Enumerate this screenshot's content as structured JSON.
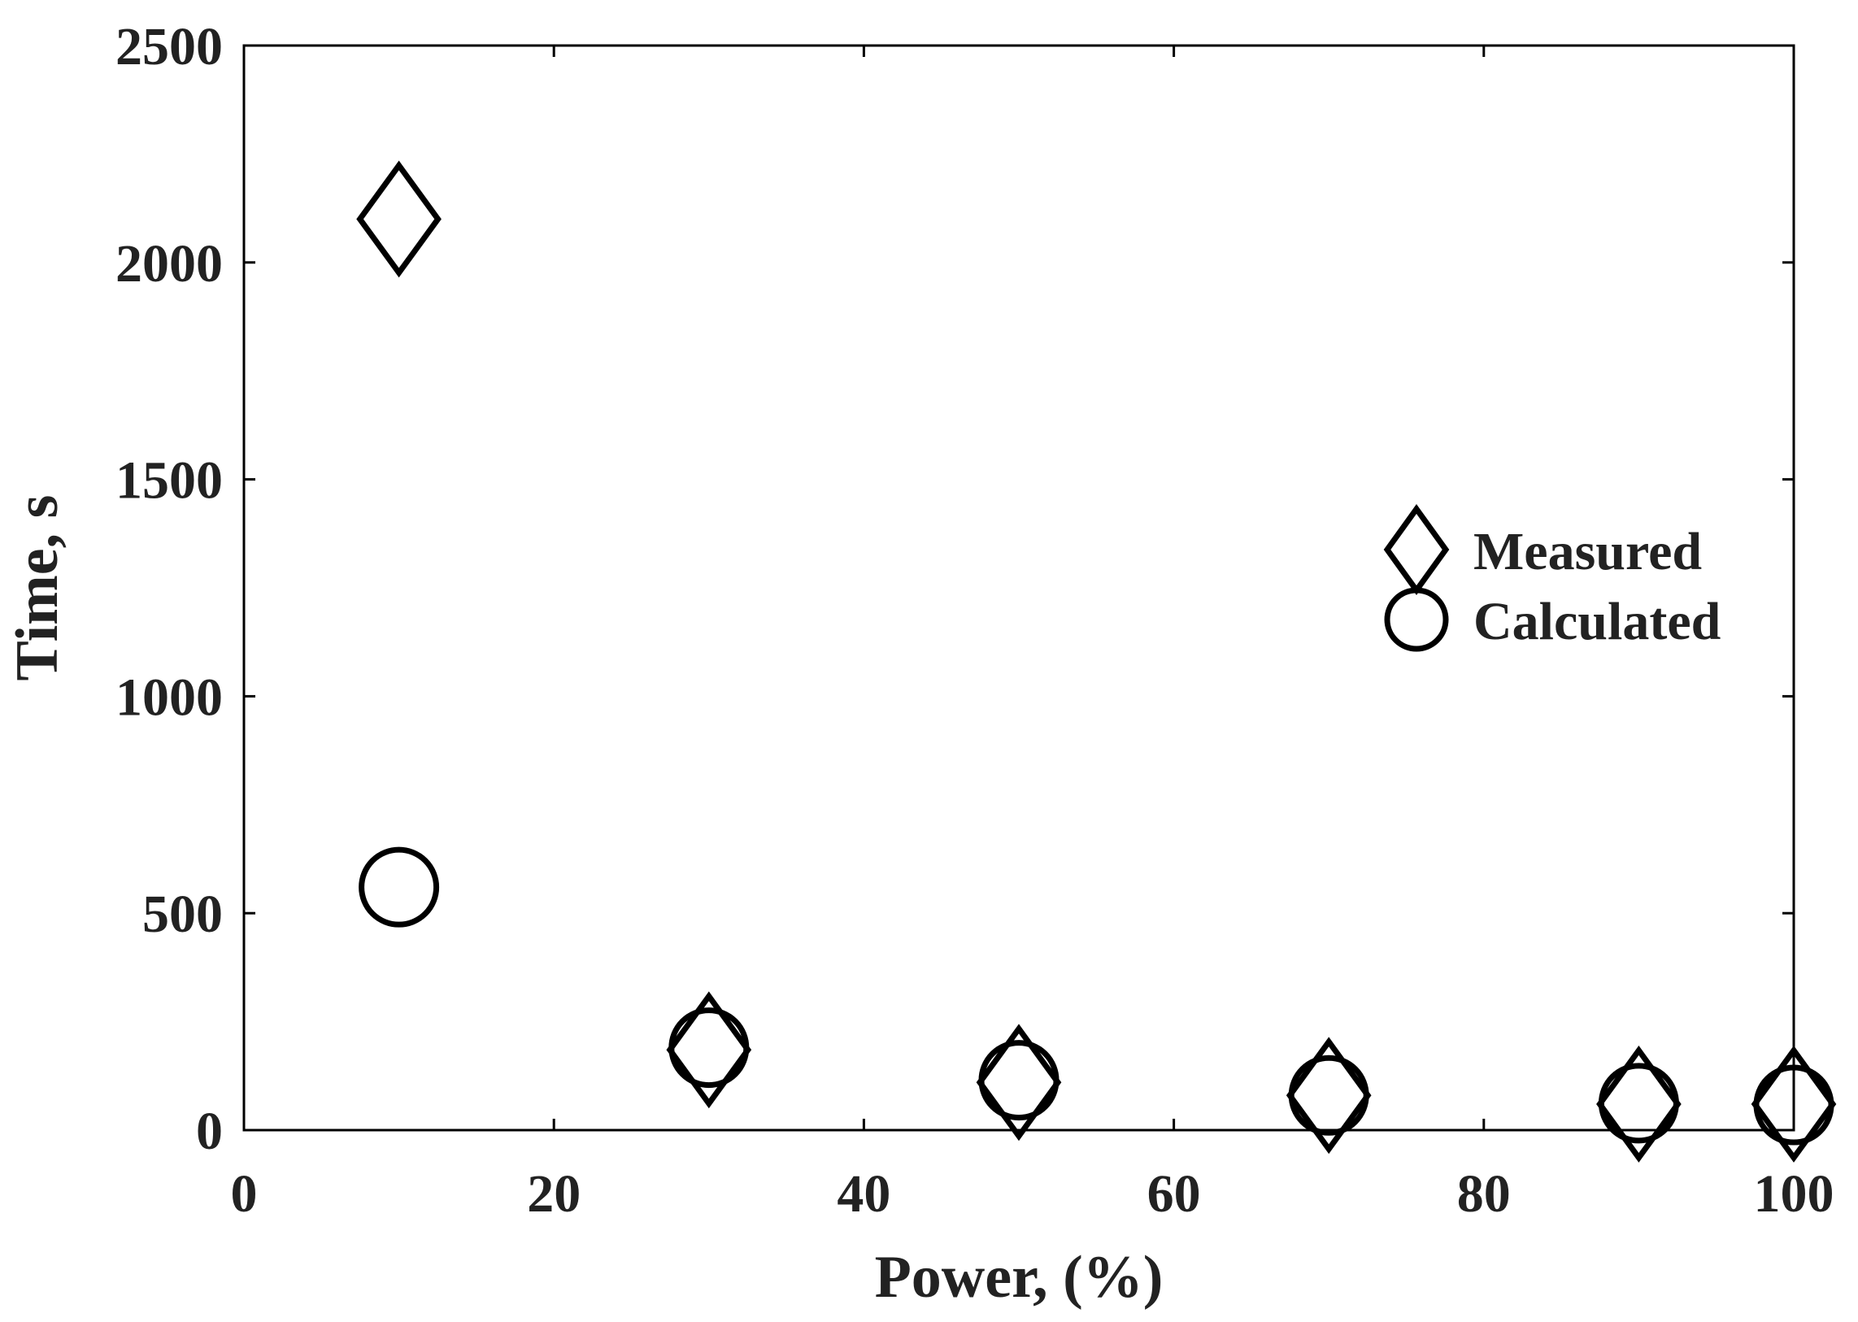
{
  "chart_data": {
    "type": "scatter",
    "title": "",
    "xlabel": "Power, (%)",
    "ylabel": "Time, s",
    "xlim": [
      0,
      100
    ],
    "ylim": [
      0,
      2500
    ],
    "xticks": [
      0,
      20,
      40,
      60,
      80,
      100
    ],
    "yticks": [
      0,
      500,
      1000,
      1500,
      2000,
      2500
    ],
    "grid": false,
    "legend_position": "center-right",
    "series": [
      {
        "name": "Measured",
        "marker": "diamond",
        "color": "#000000",
        "points": [
          {
            "x": 10,
            "y": 2100
          },
          {
            "x": 30,
            "y": 185
          },
          {
            "x": 50,
            "y": 110
          },
          {
            "x": 70,
            "y": 80
          },
          {
            "x": 90,
            "y": 60
          },
          {
            "x": 100,
            "y": 60
          }
        ]
      },
      {
        "name": "Calculated",
        "marker": "circle",
        "color": "#000000",
        "points": [
          {
            "x": 10,
            "y": 560
          },
          {
            "x": 30,
            "y": 190
          },
          {
            "x": 50,
            "y": 115
          },
          {
            "x": 70,
            "y": 80
          },
          {
            "x": 90,
            "y": 62
          },
          {
            "x": 100,
            "y": 58
          }
        ]
      }
    ]
  }
}
